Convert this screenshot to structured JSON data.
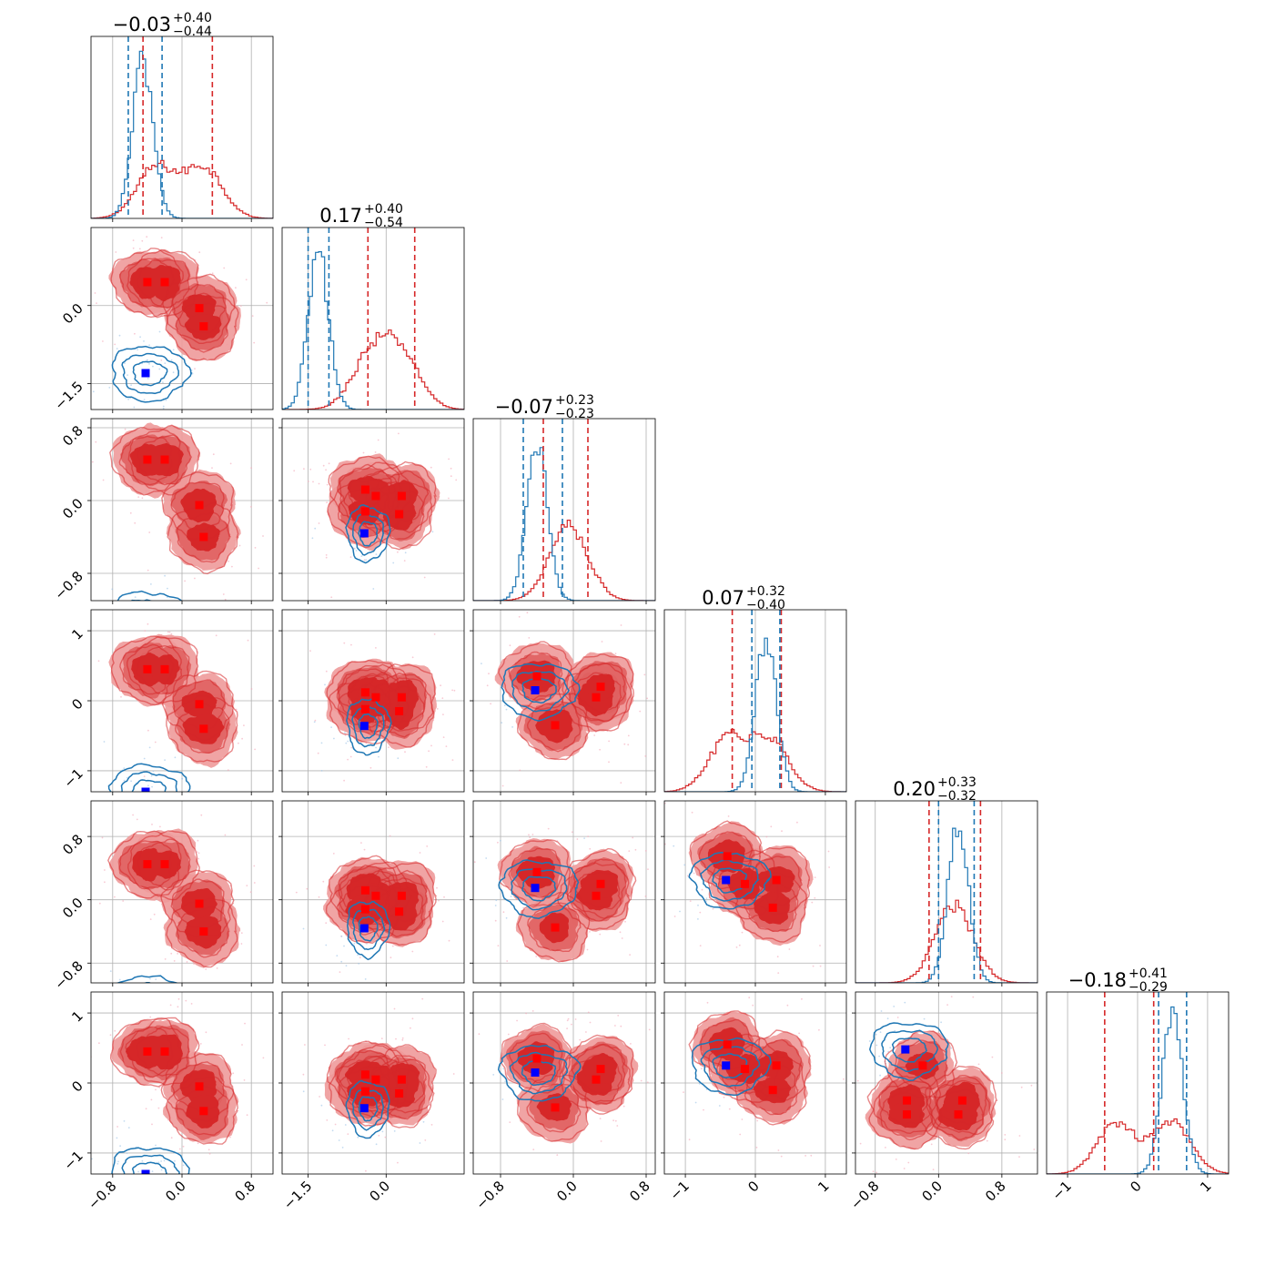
{
  "colors": {
    "red": "#d62728",
    "red_light": "#ee9a9a",
    "blue": "#1f77b4",
    "marker_red": "#ff0000",
    "marker_blue": "#0000ff"
  },
  "chart_data": {
    "type": "corner",
    "n_params": 6,
    "grid": true,
    "legend": "none",
    "axes": [
      {
        "lim": [
          -1.05,
          1.05
        ],
        "ticks": [
          -0.8,
          0.0,
          0.8
        ],
        "tick_labels": [
          "−0.8",
          "0.0",
          "0.8"
        ]
      },
      {
        "lim": [
          -2.0,
          1.5
        ],
        "ticks": [
          -1.5,
          0.0
        ],
        "tick_labels": [
          "−1.5",
          "0.0"
        ]
      },
      {
        "lim": [
          -1.1,
          0.9
        ],
        "ticks": [
          -0.8,
          0.0,
          0.8
        ],
        "tick_labels": [
          "−0.8",
          "0.0",
          "0.8"
        ]
      },
      {
        "lim": [
          -1.3,
          1.3
        ],
        "ticks": [
          -1,
          0,
          1
        ],
        "tick_labels": [
          "−1",
          "0",
          "1"
        ]
      },
      {
        "lim": [
          -1.05,
          1.25
        ],
        "ticks": [
          -0.8,
          0.0,
          0.8
        ],
        "tick_labels": [
          "−0.8",
          "0.0",
          "0.8"
        ]
      },
      {
        "lim": [
          -1.3,
          1.3
        ],
        "ticks": [
          -1,
          0,
          1
        ],
        "tick_labels": [
          "−1",
          "0",
          "1"
        ]
      }
    ],
    "titles": [
      {
        "main": "−0.03",
        "upper": "+0.40",
        "lower": "−0.44"
      },
      {
        "main": "0.17",
        "upper": "+0.40",
        "lower": "−0.54"
      },
      {
        "main": "−0.07",
        "upper": "+0.23",
        "lower": "−0.23"
      },
      {
        "main": "0.07",
        "upper": "+0.32",
        "lower": "−0.40"
      },
      {
        "main": "0.20",
        "upper": "+0.33",
        "lower": "−0.32"
      },
      {
        "main": "−0.18",
        "upper": "+0.41",
        "lower": "−0.29"
      }
    ],
    "red_quantiles": [
      [
        -0.45,
        0.35
      ],
      [
        -0.35,
        0.55
      ],
      [
        -0.33,
        0.16
      ],
      [
        -0.33,
        0.37
      ],
      [
        -0.12,
        0.53
      ],
      [
        -0.47,
        0.23
      ]
    ],
    "blue_quantiles": [
      [
        -0.62,
        -0.23
      ],
      [
        -1.5,
        -1.1
      ],
      [
        -0.55,
        -0.12
      ],
      [
        -0.05,
        0.35
      ],
      [
        0.0,
        0.45
      ],
      [
        0.3,
        0.7
      ]
    ],
    "red_means": [
      [
        [
          -0.4,
          0.45
        ],
        [
          -0.2,
          0.45
        ],
        [
          0.2,
          -0.05
        ],
        [
          0.25,
          -0.4
        ]
      ],
      [
        [
          -0.4,
          0.12
        ],
        [
          -0.4,
          -0.12
        ],
        [
          -0.2,
          0.05
        ],
        [
          0.25,
          -0.15
        ],
        [
          0.3,
          0.05
        ]
      ],
      [
        [
          -0.4,
          0.35
        ],
        [
          -0.2,
          -0.35
        ],
        [
          0.25,
          0.05
        ],
        [
          0.3,
          0.2
        ]
      ],
      [
        [
          -0.4,
          0.55
        ],
        [
          -0.15,
          0.2
        ],
        [
          0.25,
          -0.1
        ],
        [
          0.3,
          0.25
        ]
      ],
      [
        [
          -0.4,
          -0.25
        ],
        [
          -0.4,
          -0.45
        ],
        [
          -0.2,
          0.25
        ],
        [
          0.25,
          -0.45
        ],
        [
          0.3,
          -0.25
        ]
      ]
    ],
    "blue_means": [
      [
        -0.42,
        -1.3
      ],
      [
        -0.42,
        -0.36
      ],
      [
        -0.42,
        0.15
      ],
      [
        -0.42,
        0.25
      ],
      [
        -0.42,
        0.48
      ]
    ],
    "series": [
      {
        "name": "",
        "color": "red",
        "marginal_modes": [
          [
            -0.3,
            0.25
          ],
          [
            -0.3,
            0.3
          ],
          [
            -0.05
          ],
          [
            -0.4,
            0.2
          ],
          [
            0.2
          ],
          [
            -0.3,
            0.5
          ]
        ]
      },
      {
        "name": "",
        "color": "blue",
        "marginal_modes": [
          [
            -0.45
          ],
          [
            -1.3
          ],
          [
            -0.4
          ],
          [
            0.15
          ],
          [
            0.25
          ],
          [
            0.5
          ]
        ]
      }
    ]
  }
}
